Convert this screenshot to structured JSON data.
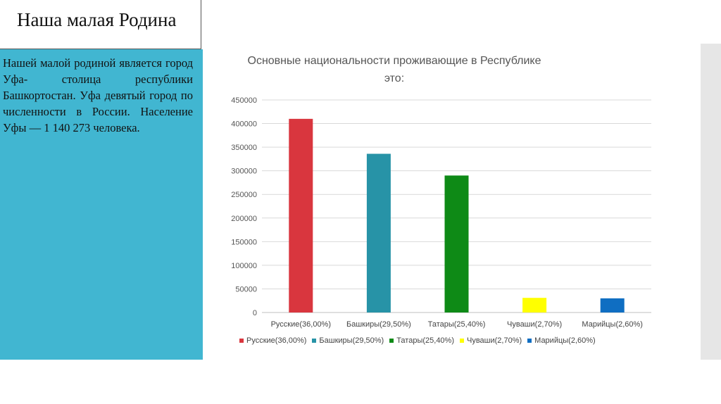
{
  "slide": {
    "title": "Наша малая Родина",
    "body": "Нашей малой родиной является город Уфа- столица республики Башкортостан. Уфа девятый город по численности в России. Население Уфы — 1 140 273 человека."
  },
  "colors": {
    "panel": "#41b6d1",
    "series": [
      "#d9363e",
      "#2793a7",
      "#0e8a16",
      "#ffff00",
      "#0f6ec2"
    ]
  },
  "chart_data": {
    "type": "bar",
    "title": "Основные национальности проживающие в Республике это:",
    "title_lines": [
      "Основные национальности проживающие в Республике",
      "это:"
    ],
    "categories": [
      "Русские(36,00%)",
      "Башкиры(29,50%)",
      "Татары(25,40%)",
      "Чуваши(2,70%)",
      "Марийцы(2,60%)"
    ],
    "values": [
      410000,
      336000,
      290000,
      31000,
      30000
    ],
    "yticks": [
      "450000",
      "400000",
      "350000",
      "300000",
      "250000",
      "200000",
      "150000",
      "100000",
      "50000",
      "0"
    ],
    "ylim": [
      0,
      450000
    ],
    "grid": true,
    "legend": "bottom"
  }
}
